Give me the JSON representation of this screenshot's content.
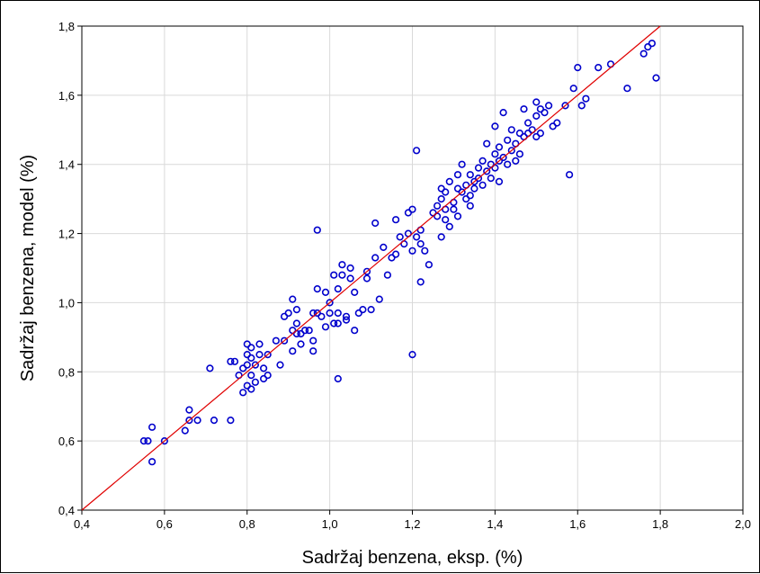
{
  "chart_data": {
    "type": "scatter",
    "title": "",
    "xlabel": "Sadržaj benzena, eksp. (%)",
    "ylabel": "Sadržaj benzena, model (%)",
    "xlim": [
      0.4,
      2.0
    ],
    "ylim": [
      0.4,
      1.8
    ],
    "x_ticks": [
      0.4,
      0.6,
      0.8,
      1.0,
      1.2,
      1.4,
      1.6,
      1.8,
      2.0
    ],
    "y_ticks": [
      0.4,
      0.6,
      0.8,
      1.0,
      1.2,
      1.4,
      1.6,
      1.8
    ],
    "x_tick_labels": [
      "0,4",
      "0,6",
      "0,8",
      "1,0",
      "1,2",
      "1,4",
      "1,6",
      "1,8",
      "2,0"
    ],
    "y_tick_labels": [
      "0,4",
      "0,6",
      "0,8",
      "1,0",
      "1,2",
      "1,4",
      "1,6",
      "1,8"
    ],
    "grid": true,
    "point_color": "#0000cc",
    "line_color": "#e00000",
    "reference_line": {
      "from": [
        0.4,
        0.4
      ],
      "to": [
        1.8,
        1.8
      ]
    },
    "points": [
      [
        0.55,
        0.6
      ],
      [
        0.56,
        0.6
      ],
      [
        0.57,
        0.64
      ],
      [
        0.57,
        0.54
      ],
      [
        0.6,
        0.6
      ],
      [
        0.65,
        0.63
      ],
      [
        0.66,
        0.66
      ],
      [
        0.66,
        0.69
      ],
      [
        0.68,
        0.66
      ],
      [
        0.71,
        0.81
      ],
      [
        0.72,
        0.66
      ],
      [
        0.76,
        0.66
      ],
      [
        0.76,
        0.83
      ],
      [
        0.77,
        0.83
      ],
      [
        0.78,
        0.79
      ],
      [
        0.79,
        0.74
      ],
      [
        0.79,
        0.81
      ],
      [
        0.8,
        0.85
      ],
      [
        0.8,
        0.76
      ],
      [
        0.8,
        0.82
      ],
      [
        0.8,
        0.88
      ],
      [
        0.81,
        0.79
      ],
      [
        0.81,
        0.84
      ],
      [
        0.81,
        0.87
      ],
      [
        0.81,
        0.75
      ],
      [
        0.82,
        0.77
      ],
      [
        0.82,
        0.82
      ],
      [
        0.83,
        0.88
      ],
      [
        0.83,
        0.85
      ],
      [
        0.84,
        0.81
      ],
      [
        0.84,
        0.78
      ],
      [
        0.85,
        0.79
      ],
      [
        0.85,
        0.85
      ],
      [
        0.87,
        0.89
      ],
      [
        0.88,
        0.82
      ],
      [
        0.89,
        0.89
      ],
      [
        0.89,
        0.96
      ],
      [
        0.9,
        0.97
      ],
      [
        0.91,
        0.92
      ],
      [
        0.91,
        1.01
      ],
      [
        0.91,
        0.86
      ],
      [
        0.92,
        0.98
      ],
      [
        0.92,
        0.91
      ],
      [
        0.92,
        0.94
      ],
      [
        0.93,
        0.91
      ],
      [
        0.93,
        0.88
      ],
      [
        0.94,
        0.92
      ],
      [
        0.95,
        0.92
      ],
      [
        0.96,
        0.97
      ],
      [
        0.96,
        0.86
      ],
      [
        0.96,
        0.89
      ],
      [
        0.97,
        1.04
      ],
      [
        0.97,
        0.97
      ],
      [
        0.97,
        1.21
      ],
      [
        0.98,
        0.96
      ],
      [
        0.99,
        0.93
      ],
      [
        0.99,
        1.03
      ],
      [
        1.0,
        1.0
      ],
      [
        1.0,
        0.97
      ],
      [
        1.01,
        0.94
      ],
      [
        1.01,
        1.08
      ],
      [
        1.02,
        0.94
      ],
      [
        1.02,
        0.97
      ],
      [
        1.02,
        0.78
      ],
      [
        1.02,
        1.04
      ],
      [
        1.03,
        1.11
      ],
      [
        1.03,
        1.08
      ],
      [
        1.04,
        0.96
      ],
      [
        1.04,
        0.95
      ],
      [
        1.05,
        1.07
      ],
      [
        1.05,
        1.1
      ],
      [
        1.06,
        1.03
      ],
      [
        1.06,
        0.92
      ],
      [
        1.07,
        0.97
      ],
      [
        1.08,
        0.98
      ],
      [
        1.09,
        1.09
      ],
      [
        1.09,
        1.07
      ],
      [
        1.1,
        0.98
      ],
      [
        1.11,
        1.13
      ],
      [
        1.11,
        1.23
      ],
      [
        1.12,
        1.01
      ],
      [
        1.13,
        1.16
      ],
      [
        1.14,
        1.08
      ],
      [
        1.15,
        1.13
      ],
      [
        1.16,
        1.14
      ],
      [
        1.16,
        1.24
      ],
      [
        1.17,
        1.19
      ],
      [
        1.18,
        1.17
      ],
      [
        1.19,
        1.2
      ],
      [
        1.19,
        1.26
      ],
      [
        1.2,
        0.85
      ],
      [
        1.2,
        1.15
      ],
      [
        1.2,
        1.27
      ],
      [
        1.21,
        1.44
      ],
      [
        1.21,
        1.19
      ],
      [
        1.22,
        1.06
      ],
      [
        1.22,
        1.17
      ],
      [
        1.22,
        1.21
      ],
      [
        1.23,
        1.15
      ],
      [
        1.24,
        1.11
      ],
      [
        1.25,
        1.26
      ],
      [
        1.26,
        1.25
      ],
      [
        1.26,
        1.28
      ],
      [
        1.27,
        1.3
      ],
      [
        1.27,
        1.19
      ],
      [
        1.27,
        1.33
      ],
      [
        1.28,
        1.27
      ],
      [
        1.28,
        1.24
      ],
      [
        1.28,
        1.32
      ],
      [
        1.29,
        1.22
      ],
      [
        1.29,
        1.35
      ],
      [
        1.3,
        1.27
      ],
      [
        1.3,
        1.29
      ],
      [
        1.31,
        1.33
      ],
      [
        1.31,
        1.37
      ],
      [
        1.31,
        1.25
      ],
      [
        1.32,
        1.4
      ],
      [
        1.32,
        1.32
      ],
      [
        1.33,
        1.3
      ],
      [
        1.33,
        1.34
      ],
      [
        1.34,
        1.28
      ],
      [
        1.34,
        1.31
      ],
      [
        1.34,
        1.37
      ],
      [
        1.35,
        1.35
      ],
      [
        1.35,
        1.33
      ],
      [
        1.36,
        1.39
      ],
      [
        1.36,
        1.36
      ],
      [
        1.37,
        1.34
      ],
      [
        1.37,
        1.41
      ],
      [
        1.38,
        1.46
      ],
      [
        1.38,
        1.38
      ],
      [
        1.39,
        1.4
      ],
      [
        1.39,
        1.36
      ],
      [
        1.4,
        1.43
      ],
      [
        1.4,
        1.51
      ],
      [
        1.4,
        1.39
      ],
      [
        1.41,
        1.45
      ],
      [
        1.41,
        1.41
      ],
      [
        1.41,
        1.35
      ],
      [
        1.42,
        1.55
      ],
      [
        1.42,
        1.42
      ],
      [
        1.43,
        1.47
      ],
      [
        1.43,
        1.4
      ],
      [
        1.44,
        1.44
      ],
      [
        1.44,
        1.5
      ],
      [
        1.45,
        1.46
      ],
      [
        1.45,
        1.41
      ],
      [
        1.46,
        1.49
      ],
      [
        1.46,
        1.43
      ],
      [
        1.47,
        1.48
      ],
      [
        1.47,
        1.56
      ],
      [
        1.48,
        1.52
      ],
      [
        1.48,
        1.49
      ],
      [
        1.49,
        1.5
      ],
      [
        1.5,
        1.48
      ],
      [
        1.5,
        1.54
      ],
      [
        1.5,
        1.58
      ],
      [
        1.51,
        1.49
      ],
      [
        1.51,
        1.56
      ],
      [
        1.52,
        1.55
      ],
      [
        1.53,
        1.57
      ],
      [
        1.54,
        1.51
      ],
      [
        1.55,
        1.52
      ],
      [
        1.57,
        1.57
      ],
      [
        1.58,
        1.37
      ],
      [
        1.59,
        1.62
      ],
      [
        1.6,
        1.68
      ],
      [
        1.61,
        1.57
      ],
      [
        1.62,
        1.59
      ],
      [
        1.65,
        1.68
      ],
      [
        1.68,
        1.69
      ],
      [
        1.72,
        1.62
      ],
      [
        1.76,
        1.72
      ],
      [
        1.77,
        1.74
      ],
      [
        1.78,
        1.75
      ],
      [
        1.79,
        1.65
      ]
    ]
  }
}
